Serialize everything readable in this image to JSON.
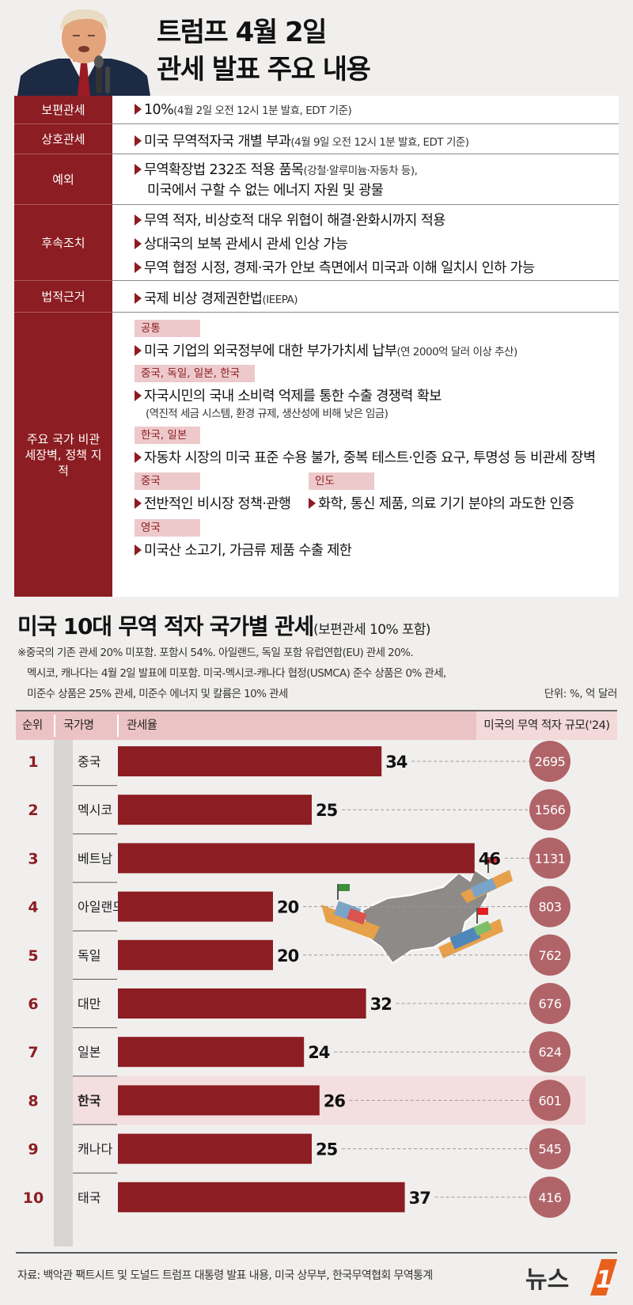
{
  "header": {
    "title_line1": "트럼프 4월 2일",
    "title_line2": "관세 발표 주요 내용"
  },
  "policy": {
    "labels": {
      "universal": "보편관세",
      "reciprocal": "상호관세",
      "exception": "예외",
      "followup": "후속조치",
      "legal": "법적근거",
      "barriers": "주요 국가 비관세장벽, 정책 지적"
    },
    "universal": {
      "main": "10%",
      "note": "(4월 2일 오전 12시 1분 발효, EDT 기준)"
    },
    "reciprocal": {
      "main": "미국 무역적자국 개별 부과",
      "note": "(4월 9일 오전 12시 1분 발효, EDT 기준)"
    },
    "exception": {
      "line1_main": "무역확장법 232조 적용 품목",
      "line1_note": "(강철·알루미늄·자동차 등),",
      "line2": "미국에서 구할 수 없는 에너지 자원 및 광물"
    },
    "followup": [
      "무역 적자, 비상호적 대우 위협이 해결·완화시까지 적용",
      "상대국의 보복 관세시 관세 인상 가능",
      "무역 협정 시정, 경제·국가 안보 측면에서 미국과 이해 일치시 인하 가능"
    ],
    "legal": {
      "main": "국제 비상 경제권한법",
      "note": "(IEEPA)"
    },
    "barriers": {
      "common_tag": "공통",
      "common_main": "미국 기업의 외국정부에 대한 부가가치세 납부",
      "common_note": "(연 2000억 달러 이상 추산)",
      "cde_tag": "중국, 독일, 일본, 한국",
      "cde_main": "자국시민의 국내 소비력 억제를 통한 수출 경쟁력 확보",
      "cde_note": "(역진적 세금 시스템, 환경 규제, 생산성에 비해 낮은 임금)",
      "kj_tag": "한국, 일본",
      "kj_main": "자동차 시장의 미국 표준 수용 불가, 중복 테스트·인증 요구, 투명성 등 비관세 장벽",
      "china_tag": "중국",
      "china_main": "전반적인 비시장 정책·관행",
      "india_tag": "인도",
      "india_main": "화학, 통신 제품, 의료 기기 분야의 과도한 인증",
      "uk_tag": "영국",
      "uk_main": "미국산 소고기, 가금류 제품 수출 제한"
    }
  },
  "chart_header": {
    "title": "미국 10대 무역 적자 국가별 관세",
    "title_sub": "(보편관세 10% 포함)",
    "note1": "※중국의 기존 관세 20% 미포함. 포함시 54%. 아일랜드, 독일 포함 유럽연합(EU) 관세 20%.",
    "note2": "멕시코, 캐나다는 4월 2일 발표에 미포함. 미국-멕시코-캐나다 협정(USMCA) 준수 상품은 0% 관세,",
    "note3": "미준수 상품은 25% 관세, 미준수 에너지 및 칼륨은 10% 관세",
    "unit": "단위: %, 억 달러",
    "col_rank": "순위",
    "col_country": "국가명",
    "col_rate": "관세율",
    "col_size": "미국의 무역 적자 규모('24)"
  },
  "chart_data": {
    "type": "bar",
    "orientation": "horizontal",
    "ranks": [
      "1",
      "2",
      "3",
      "4",
      "5",
      "6",
      "7",
      "8",
      "9",
      "10"
    ],
    "categories": [
      "중국",
      "멕시코",
      "베트남",
      "아일랜드",
      "독일",
      "대만",
      "일본",
      "한국",
      "캐나다",
      "태국"
    ],
    "values": [
      34,
      25,
      46,
      20,
      20,
      32,
      24,
      26,
      25,
      37
    ],
    "deficit": [
      2695,
      1566,
      1131,
      803,
      762,
      676,
      624,
      601,
      545,
      416
    ],
    "highlight": "한국",
    "bar_color": "#8c1d22",
    "circle_color": "#b06468"
  },
  "footer": {
    "source": "자료: 백악관 팩트시트 및 도널드 트럼프 대통령 발표 내용, 미국 상무부, 한국무역협회 무역통계",
    "logo_text": "뉴스",
    "logo_num": "1"
  }
}
